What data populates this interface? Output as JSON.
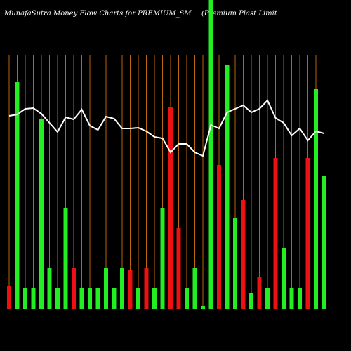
{
  "chart_data": {
    "type": "bar",
    "title": "MunafaSutra  Money Flow  Charts for PREMIUM_SM",
    "subtitle": "(Premium Plast Limit",
    "categories": [
      null,
      null,
      null,
      null,
      null,
      null,
      null,
      null,
      null,
      null,
      null,
      null,
      null,
      null,
      null,
      null,
      null,
      null,
      null,
      null,
      null,
      null,
      null,
      null,
      null,
      null,
      null,
      null,
      null,
      null,
      null,
      null,
      null,
      null,
      null,
      null,
      null,
      null,
      null,
      null
    ],
    "ylim": [
      0,
      440
    ],
    "bar_colors": {
      "up": "#22ee22",
      "down": "#ee1111"
    },
    "series": [
      {
        "name": "Money Flow",
        "values": [
          33,
          323,
          30,
          30,
          271,
          58,
          30,
          144,
          58,
          30,
          30,
          30,
          58,
          30,
          58,
          56,
          30,
          58,
          30,
          144,
          287,
          115,
          30,
          58,
          4,
          440,
          205,
          347,
          130,
          155,
          23,
          45,
          30,
          215,
          87,
          30,
          30,
          215,
          313,
          190
        ],
        "direction": [
          "down",
          "up",
          "up",
          "up",
          "up",
          "up",
          "up",
          "up",
          "down",
          "up",
          "up",
          "up",
          "up",
          "up",
          "up",
          "down",
          "up",
          "down",
          "up",
          "up",
          "down",
          "down",
          "up",
          "up",
          "up",
          "up",
          "down",
          "up",
          "up",
          "down",
          "up",
          "down",
          "up",
          "down",
          "up",
          "up",
          "up",
          "down",
          "up",
          "up"
        ]
      },
      {
        "name": "Price",
        "color": "#ffffff",
        "values": [
          275,
          277,
          285,
          286,
          278,
          265,
          252,
          273,
          270,
          284,
          261,
          255,
          274,
          271,
          257,
          257,
          258,
          253,
          245,
          243,
          223,
          235,
          235,
          223,
          218,
          262,
          257,
          280,
          285,
          290,
          280,
          285,
          297,
          272,
          265,
          247,
          257,
          240,
          253,
          250
        ]
      }
    ],
    "grid_color": "#b8650a"
  }
}
